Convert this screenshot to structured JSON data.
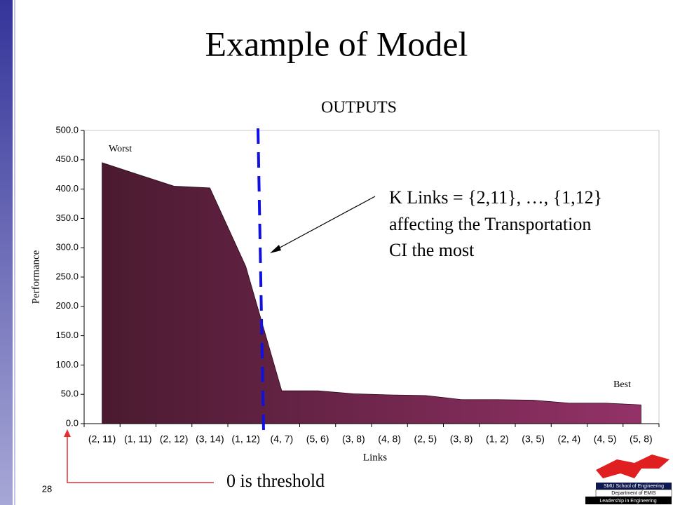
{
  "slide": {
    "title": "Example of Model",
    "page_number": "28",
    "threshold_note": "0 is threshold",
    "logo": [
      "SMU School of Engineering",
      "Department of EMIS",
      "Leadership in Engineering"
    ]
  },
  "chart_data": {
    "type": "area",
    "title": "OUTPUTS",
    "x_label": "Links",
    "y_label": "Performance",
    "categories": [
      "(2, 11)",
      "(1, 11)",
      "(2, 12)",
      "(3, 14)",
      "(1, 12)",
      "(4, 7)",
      "(5, 6)",
      "(3, 8)",
      "(4, 8)",
      "(2, 5)",
      "(3, 8)",
      "(1, 2)",
      "(3, 5)",
      "(2, 4)",
      "(4, 5)",
      "(5, 8)"
    ],
    "values": [
      445,
      425,
      405,
      402,
      268,
      56,
      56,
      51,
      49,
      48,
      41,
      41,
      40,
      35,
      35,
      32
    ],
    "gradient": [
      "#4a1a30",
      "#943268"
    ],
    "ylim": [
      0,
      500
    ],
    "yticks": [
      {
        "value": 0,
        "label": "0.0"
      },
      {
        "value": 50,
        "label": "50.0"
      },
      {
        "value": 100,
        "label": "100.0"
      },
      {
        "value": 150,
        "label": "150.0"
      },
      {
        "value": 200,
        "label": "200.0"
      },
      {
        "value": 250,
        "label": "250.0"
      },
      {
        "value": 300,
        "label": "300.0"
      },
      {
        "value": 350,
        "label": "350.0"
      },
      {
        "value": 400,
        "label": "400.0"
      },
      {
        "value": 450,
        "label": "450.0"
      },
      {
        "value": 500,
        "label": "500.0"
      }
    ],
    "annotations": {
      "worst": "Worst",
      "best": "Best",
      "k_links": [
        "K Links = {2,11}, …, {1,12}",
        "affecting the Transportation",
        "CI the most"
      ]
    }
  }
}
